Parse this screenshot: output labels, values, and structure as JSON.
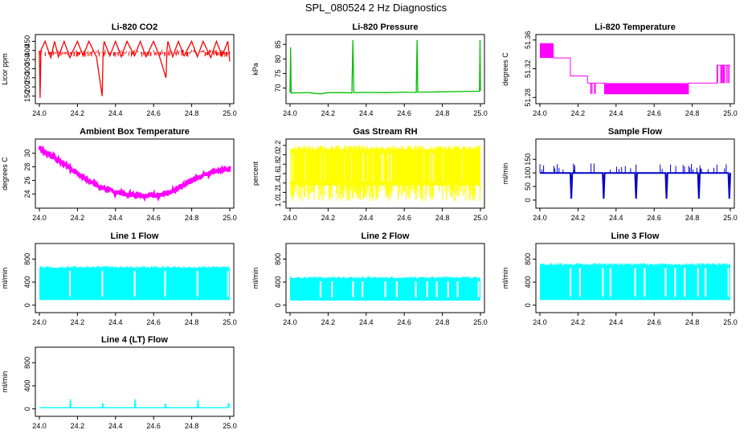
{
  "page_title": "SPL_080524  2 Hz Diagnostics",
  "chart_data": [
    {
      "type": "line",
      "title": "Li-820 CO2",
      "xlabel": "",
      "ylabel": "Licor ppm",
      "xlim": [
        24.0,
        25.0
      ],
      "ylim": [
        130,
        465
      ],
      "x_ticks": [
        "24.0",
        "24.2",
        "24.4",
        "24.6",
        "24.8",
        "25.0"
      ],
      "y_ticks": [
        "150",
        "200",
        "250",
        "300",
        "350",
        "400",
        "450"
      ],
      "color": "#ff0000",
      "series": [
        {
          "x": [
            24.0,
            24.004,
            24.008,
            24.03,
            24.06,
            24.08,
            24.1,
            24.13,
            24.16,
            24.2,
            24.23,
            24.26,
            24.3,
            24.33,
            24.335,
            24.34,
            24.37,
            24.4,
            24.43,
            24.46,
            24.5,
            24.53,
            24.56,
            24.6,
            24.63,
            24.665,
            24.67,
            24.675,
            24.7,
            24.73,
            24.76,
            24.8,
            24.83,
            24.86,
            24.9,
            24.93,
            24.96,
            24.99,
            25.0
          ],
          "y": [
            400,
            140,
            400,
            450,
            360,
            450,
            365,
            450,
            360,
            450,
            370,
            450,
            365,
            150,
            400,
            450,
            370,
            450,
            365,
            450,
            370,
            450,
            365,
            450,
            370,
            250,
            400,
            450,
            365,
            450,
            370,
            450,
            365,
            450,
            360,
            450,
            370,
            450,
            340
          ]
        }
      ]
    },
    {
      "type": "line",
      "title": "Li-820 Pressure",
      "xlabel": "",
      "ylabel": "kPa",
      "xlim": [
        24.0,
        25.0
      ],
      "ylim": [
        66,
        87
      ],
      "x_ticks": [
        "24.0",
        "24.2",
        "24.4",
        "24.6",
        "24.8",
        "25.0"
      ],
      "y_ticks": [
        "70",
        "75",
        "80",
        "85"
      ],
      "color": "#00c000",
      "series": [
        {
          "x": [
            24.0,
            24.003,
            24.006,
            24.1,
            24.16,
            24.2,
            24.3,
            24.325,
            24.33,
            24.335,
            24.4,
            24.5,
            24.6,
            24.663,
            24.667,
            24.671,
            24.7,
            24.8,
            24.9,
            24.995,
            24.998,
            25.0
          ],
          "y": [
            68.5,
            84,
            68.3,
            68.4,
            68.0,
            68.4,
            68.4,
            68.3,
            86.5,
            68.4,
            68.5,
            68.4,
            68.6,
            68.5,
            86.5,
            68.6,
            68.6,
            68.7,
            68.8,
            68.9,
            86.5,
            69.0
          ]
        }
      ]
    },
    {
      "type": "line",
      "title": "Li-820 Temperature",
      "xlabel": "",
      "ylabel": "degrees C",
      "xlim": [
        24.0,
        25.0
      ],
      "ylim": [
        51.277,
        51.362
      ],
      "x_ticks": [
        "24.0",
        "24.2",
        "24.4",
        "24.6",
        "24.8",
        "25.0"
      ],
      "y_ticks": [
        "51.28",
        "51.32",
        "51.36"
      ],
      "color": "#ff00ff",
      "series": [
        {
          "x": [
            24.0,
            24.07,
            24.07,
            24.16,
            24.16,
            24.25,
            24.25,
            24.34,
            24.34,
            24.78,
            24.78,
            24.93,
            24.93,
            25.0
          ],
          "y": [
            51.355,
            51.355,
            51.335,
            51.335,
            51.31,
            51.31,
            51.3,
            51.3,
            51.285,
            51.285,
            51.3,
            51.3,
            51.325,
            51.325
          ]
        }
      ]
    },
    {
      "type": "line",
      "title": "Ambient Box Temperature",
      "xlabel": "",
      "ylabel": "degrees C",
      "xlim": [
        24.0,
        25.0
      ],
      "ylim": [
        22.5,
        31.5
      ],
      "x_ticks": [
        "24.0",
        "24.2",
        "24.4",
        "24.6",
        "24.8",
        "25.0"
      ],
      "y_ticks": [
        "24",
        "26",
        "28",
        "30"
      ],
      "color": "#ff00ff",
      "series": [
        {
          "x": [
            24.0,
            24.05,
            24.1,
            24.15,
            24.2,
            24.25,
            24.3,
            24.35,
            24.4,
            24.45,
            24.5,
            24.55,
            24.6,
            24.65,
            24.7,
            24.75,
            24.8,
            24.85,
            24.9,
            24.95,
            25.0
          ],
          "y": [
            30.6,
            29.9,
            29.0,
            28.0,
            27.0,
            26.1,
            25.3,
            24.7,
            24.3,
            24.0,
            23.8,
            23.7,
            23.7,
            23.9,
            24.4,
            25.1,
            25.9,
            26.6,
            27.1,
            27.5,
            27.8
          ]
        }
      ]
    },
    {
      "type": "area",
      "title": "Gas Stream RH",
      "xlabel": "",
      "ylabel": "percent",
      "xlim": [
        24.0,
        25.0
      ],
      "ylim": [
        0.95,
        2.25
      ],
      "x_ticks": [
        "24.0",
        "24.2",
        "24.4",
        "24.6",
        "24.8",
        "25.0"
      ],
      "y_ticks": [
        "1.0",
        "1.2",
        "1.4",
        "1.6",
        "1.8",
        "2.0",
        "2.2"
      ],
      "color": "#ffff00",
      "band": {
        "low": 1.35,
        "high": 2.12,
        "min_spike": 1.0
      }
    },
    {
      "type": "line",
      "title": "Sample Flow",
      "xlabel": "",
      "ylabel": "ml/min",
      "xlim": [
        24.0,
        25.0
      ],
      "ylim": [
        -15,
        210
      ],
      "x_ticks": [
        "24.0",
        "24.2",
        "24.4",
        "24.6",
        "24.8",
        "25.0"
      ],
      "y_ticks": [
        "0",
        "50",
        "100",
        "150"
      ],
      "color": "#0000cc",
      "series": [
        {
          "x": [
            24.0,
            24.16,
            24.165,
            24.17,
            24.33,
            24.335,
            24.34,
            24.5,
            24.505,
            24.51,
            24.66,
            24.665,
            24.67,
            24.83,
            24.835,
            24.84,
            24.99,
            24.995,
            25.0
          ],
          "y": [
            100,
            100,
            5,
            100,
            100,
            5,
            100,
            100,
            5,
            100,
            100,
            5,
            100,
            100,
            5,
            100,
            100,
            5,
            100
          ]
        }
      ]
    },
    {
      "type": "area",
      "title": "Line 1 Flow",
      "xlabel": "",
      "ylabel": "ml/min",
      "xlim": [
        24.0,
        25.0
      ],
      "ylim": [
        -60,
        1000
      ],
      "x_ticks": [
        "24.0",
        "24.2",
        "24.4",
        "24.6",
        "24.8",
        "25.0"
      ],
      "y_ticks": [
        "0",
        "400",
        "800"
      ],
      "color": "#00ffff",
      "band": {
        "low": 90,
        "high": 650
      },
      "gaps": [
        24.16,
        24.33,
        24.5,
        24.66,
        24.83,
        24.99
      ]
    },
    {
      "type": "area",
      "title": "Line 2 Flow",
      "xlabel": "",
      "ylabel": "ml/min",
      "xlim": [
        24.0,
        25.0
      ],
      "ylim": [
        -60,
        1000
      ],
      "x_ticks": [
        "24.0",
        "24.2",
        "24.4",
        "24.6",
        "24.8",
        "25.0"
      ],
      "y_ticks": [
        "0",
        "400",
        "800"
      ],
      "color": "#00ffff",
      "band": {
        "low": 80,
        "high": 470
      },
      "gaps": [
        24.16,
        24.22,
        24.33,
        24.38,
        24.5,
        24.56,
        24.66,
        24.72,
        24.77,
        24.83,
        24.88,
        24.99
      ]
    },
    {
      "type": "area",
      "title": "Line 3 Flow",
      "xlabel": "",
      "ylabel": "ml/min",
      "xlim": [
        24.0,
        25.0
      ],
      "ylim": [
        -60,
        1000
      ],
      "x_ticks": [
        "24.0",
        "24.2",
        "24.4",
        "24.6",
        "24.8",
        "25.0"
      ],
      "y_ticks": [
        "0",
        "400",
        "800"
      ],
      "color": "#00ffff",
      "band": {
        "low": 90,
        "high": 700
      },
      "gaps": [
        24.16,
        24.21,
        24.33,
        24.37,
        24.5,
        24.55,
        24.66,
        24.71,
        24.76,
        24.83,
        24.87,
        24.99
      ]
    },
    {
      "type": "line",
      "title": "Line 4 (LT) Flow",
      "xlabel": "",
      "ylabel": "ml/min",
      "xlim": [
        24.0,
        25.0
      ],
      "ylim": [
        -60,
        1000
      ],
      "x_ticks": [
        "24.0",
        "24.2",
        "24.4",
        "24.6",
        "24.8",
        "25.0"
      ],
      "y_ticks": [
        "0",
        "400",
        "800"
      ],
      "color": "#00ffff",
      "series": [
        {
          "x": [
            24.0,
            24.16,
            24.163,
            24.166,
            24.33,
            24.333,
            24.336,
            24.5,
            24.503,
            24.506,
            24.66,
            24.663,
            24.666,
            24.83,
            24.833,
            24.836,
            24.99,
            24.993,
            25.0
          ],
          "y": [
            20,
            20,
            170,
            20,
            20,
            100,
            20,
            20,
            170,
            20,
            20,
            90,
            20,
            20,
            160,
            20,
            20,
            100,
            20
          ]
        }
      ]
    }
  ]
}
